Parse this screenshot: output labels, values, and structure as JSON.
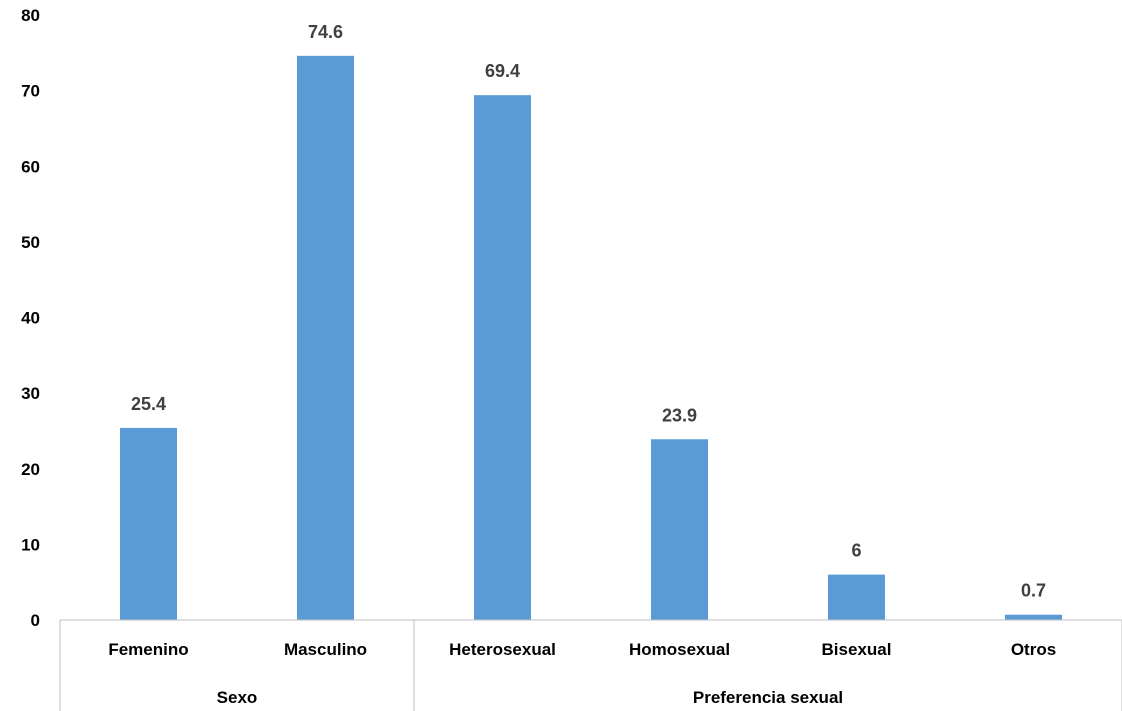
{
  "chart_data": {
    "type": "bar",
    "categories": [
      "Femenino",
      "Masculino",
      "Heterosexual",
      "Homosexual",
      "Bisexual",
      "Otros"
    ],
    "values": [
      25.4,
      74.6,
      69.4,
      23.9,
      6,
      0.7
    ],
    "value_labels": [
      "25.4",
      "74.6",
      "69.4",
      "23.9",
      "6",
      "0.7"
    ],
    "groups": [
      {
        "label": "Sexo",
        "categories": [
          "Femenino",
          "Masculino"
        ]
      },
      {
        "label": "Preferencia sexual",
        "categories": [
          "Heterosexual",
          "Homosexual",
          "Bisexual",
          "Otros"
        ]
      }
    ],
    "ylim": [
      0,
      80
    ],
    "yticks": [
      "0",
      "10",
      "20",
      "30",
      "40",
      "50",
      "60",
      "70",
      "80"
    ],
    "title": "",
    "xlabel": "",
    "ylabel": "",
    "grid": false,
    "legend": "none",
    "bar_color": "#5b9bd5",
    "label_color": "#404040",
    "axis_color": "#bfbfbf"
  }
}
